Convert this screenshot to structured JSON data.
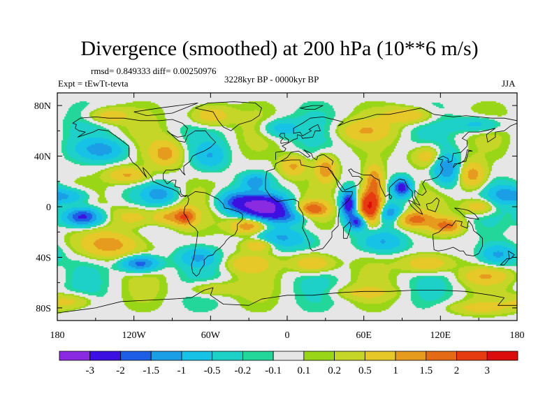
{
  "chart_data": {
    "type": "heatmap",
    "title": "Divergence (smoothed) at 200 hPa (10**6 m/s)",
    "stats": "rmsd= 0.849333 diff= 0.00250976",
    "experiment": "Expt = tEwTt-tevta",
    "period": "3228kyr BP - 0000kyr BP",
    "season": "JJA",
    "x_ticks": [
      {
        "value": -180,
        "label": "180"
      },
      {
        "value": -120,
        "label": "120W"
      },
      {
        "value": -60,
        "label": "60W"
      },
      {
        "value": 0,
        "label": "0"
      },
      {
        "value": 60,
        "label": "60E"
      },
      {
        "value": 120,
        "label": "120E"
      },
      {
        "value": 180,
        "label": "180"
      }
    ],
    "y_ticks": [
      {
        "value": 80,
        "label": "80N"
      },
      {
        "value": 40,
        "label": "40N"
      },
      {
        "value": 0,
        "label": "0"
      },
      {
        "value": -40,
        "label": "40S"
      },
      {
        "value": -80,
        "label": "80S"
      }
    ],
    "xlim": [
      -180,
      180
    ],
    "ylim": [
      -90,
      90
    ],
    "levels": [
      "-3",
      "-2",
      "-1.5",
      "-1",
      "-0.5",
      "-0.2",
      "-0.1",
      "0.1",
      "0.2",
      "0.5",
      "1",
      "1.5",
      "2",
      "3"
    ],
    "colors": [
      "#8a2be2",
      "#3c10e0",
      "#1e5de6",
      "#1c9ee6",
      "#16c3e6",
      "#1ed1c8",
      "#23d79a",
      "#e6e6e6",
      "#9ad618",
      "#c6d628",
      "#e6c828",
      "#e69a1e",
      "#e46a16",
      "#e63a10",
      "#dc0c0c"
    ],
    "blobs": [
      {
        "lon": -18,
        "lat": 0,
        "rx": 18,
        "ry": 9,
        "v": -3.4
      },
      {
        "lon": -40,
        "lat": 4,
        "rx": 14,
        "ry": 8,
        "v": -1.6
      },
      {
        "lon": 0,
        "lat": -8,
        "rx": 18,
        "ry": 6,
        "v": -1.2
      },
      {
        "lon": -5,
        "lat": -25,
        "rx": 22,
        "ry": 8,
        "v": -1.1
      },
      {
        "lon": 20,
        "lat": -2,
        "rx": 12,
        "ry": 6,
        "v": 1.8
      },
      {
        "lon": -30,
        "lat": -15,
        "rx": 14,
        "ry": 7,
        "v": 1.6
      },
      {
        "lon": -22,
        "lat": -30,
        "rx": 12,
        "ry": 5,
        "v": 1.2
      },
      {
        "lon": 48,
        "lat": 2,
        "rx": 6,
        "ry": 10,
        "v": -2.6
      },
      {
        "lon": 55,
        "lat": -12,
        "rx": 7,
        "ry": 6,
        "v": -2.2
      },
      {
        "lon": 65,
        "lat": 0,
        "rx": 9,
        "ry": 12,
        "v": 3.4
      },
      {
        "lon": 68,
        "lat": 20,
        "rx": 7,
        "ry": 12,
        "v": 1.6
      },
      {
        "lon": 90,
        "lat": 15,
        "rx": 7,
        "ry": 7,
        "v": -2.4
      },
      {
        "lon": 80,
        "lat": -5,
        "rx": 10,
        "ry": 7,
        "v": -1.3
      },
      {
        "lon": 100,
        "lat": -10,
        "rx": 14,
        "ry": 6,
        "v": 1.6
      },
      {
        "lon": 125,
        "lat": -15,
        "rx": 12,
        "ry": 6,
        "v": 1.6
      },
      {
        "lon": 75,
        "lat": -28,
        "rx": 16,
        "ry": 8,
        "v": -1.0
      },
      {
        "lon": 30,
        "lat": 30,
        "rx": 8,
        "ry": 10,
        "v": 1.4
      },
      {
        "lon": 5,
        "lat": 32,
        "rx": 10,
        "ry": 8,
        "v": 1.1
      },
      {
        "lon": -25,
        "lat": 20,
        "rx": 10,
        "ry": 6,
        "v": -1.2
      },
      {
        "lon": 125,
        "lat": 30,
        "rx": 10,
        "ry": 12,
        "v": -1.5
      },
      {
        "lon": 145,
        "lat": 25,
        "rx": 10,
        "ry": 10,
        "v": 1.3
      },
      {
        "lon": 110,
        "lat": 40,
        "rx": 12,
        "ry": 8,
        "v": 0.9
      },
      {
        "lon": 170,
        "lat": 10,
        "rx": 12,
        "ry": 8,
        "v": -0.9
      },
      {
        "lon": 150,
        "lat": 0,
        "rx": 12,
        "ry": 6,
        "v": 1.0
      },
      {
        "lon": -160,
        "lat": -8,
        "rx": 14,
        "ry": 7,
        "v": -2.4
      },
      {
        "lon": -172,
        "lat": 8,
        "rx": 16,
        "ry": 6,
        "v": -1.1
      },
      {
        "lon": -140,
        "lat": -30,
        "rx": 22,
        "ry": 10,
        "v": 1.3
      },
      {
        "lon": -120,
        "lat": -8,
        "rx": 16,
        "ry": 8,
        "v": 0.9
      },
      {
        "lon": -95,
        "lat": -8,
        "rx": 10,
        "ry": 6,
        "v": 1.0
      },
      {
        "lon": -80,
        "lat": -8,
        "rx": 9,
        "ry": 7,
        "v": 1.9
      },
      {
        "lon": -100,
        "lat": 10,
        "rx": 12,
        "ry": 7,
        "v": -1.2
      },
      {
        "lon": -125,
        "lat": 25,
        "rx": 15,
        "ry": 6,
        "v": 1.1
      },
      {
        "lon": -145,
        "lat": 45,
        "rx": 18,
        "ry": 8,
        "v": -1.2
      },
      {
        "lon": -95,
        "lat": 42,
        "rx": 12,
        "ry": 10,
        "v": 1.2
      },
      {
        "lon": -60,
        "lat": 40,
        "rx": 12,
        "ry": 10,
        "v": -0.9
      },
      {
        "lon": -115,
        "lat": -45,
        "rx": 14,
        "ry": 6,
        "v": -1.9
      },
      {
        "lon": -70,
        "lat": -40,
        "rx": 14,
        "ry": 7,
        "v": -1.0
      },
      {
        "lon": -30,
        "lat": -45,
        "rx": 16,
        "ry": 7,
        "v": 0.8
      },
      {
        "lon": 20,
        "lat": -45,
        "rx": 16,
        "ry": 7,
        "v": 1.1
      },
      {
        "lon": 110,
        "lat": -45,
        "rx": 18,
        "ry": 7,
        "v": 1.1
      },
      {
        "lon": 165,
        "lat": -38,
        "rx": 14,
        "ry": 8,
        "v": -1.2
      },
      {
        "lon": 155,
        "lat": -55,
        "rx": 18,
        "ry": 6,
        "v": 0.8
      },
      {
        "lon": -60,
        "lat": -65,
        "rx": 20,
        "ry": 6,
        "v": 0.6
      },
      {
        "lon": 60,
        "lat": -68,
        "rx": 22,
        "ry": 5,
        "v": 0.5
      },
      {
        "lon": 150,
        "lat": -80,
        "rx": 25,
        "ry": 5,
        "v": 0.6
      },
      {
        "lon": -170,
        "lat": -75,
        "rx": 18,
        "ry": 6,
        "v": 0.7
      },
      {
        "lon": 60,
        "lat": 60,
        "rx": 20,
        "ry": 8,
        "v": 0.8
      },
      {
        "lon": -60,
        "lat": 72,
        "rx": 16,
        "ry": 8,
        "v": 1.0
      },
      {
        "lon": -140,
        "lat": 72,
        "rx": 16,
        "ry": 6,
        "v": 0.8
      },
      {
        "lon": 150,
        "lat": 65,
        "rx": 18,
        "ry": 6,
        "v": -0.8
      },
      {
        "lon": 95,
        "lat": 72,
        "rx": 18,
        "ry": 6,
        "v": 1.0
      },
      {
        "lon": -5,
        "lat": 62,
        "rx": 14,
        "ry": 7,
        "v": -0.8
      }
    ]
  }
}
